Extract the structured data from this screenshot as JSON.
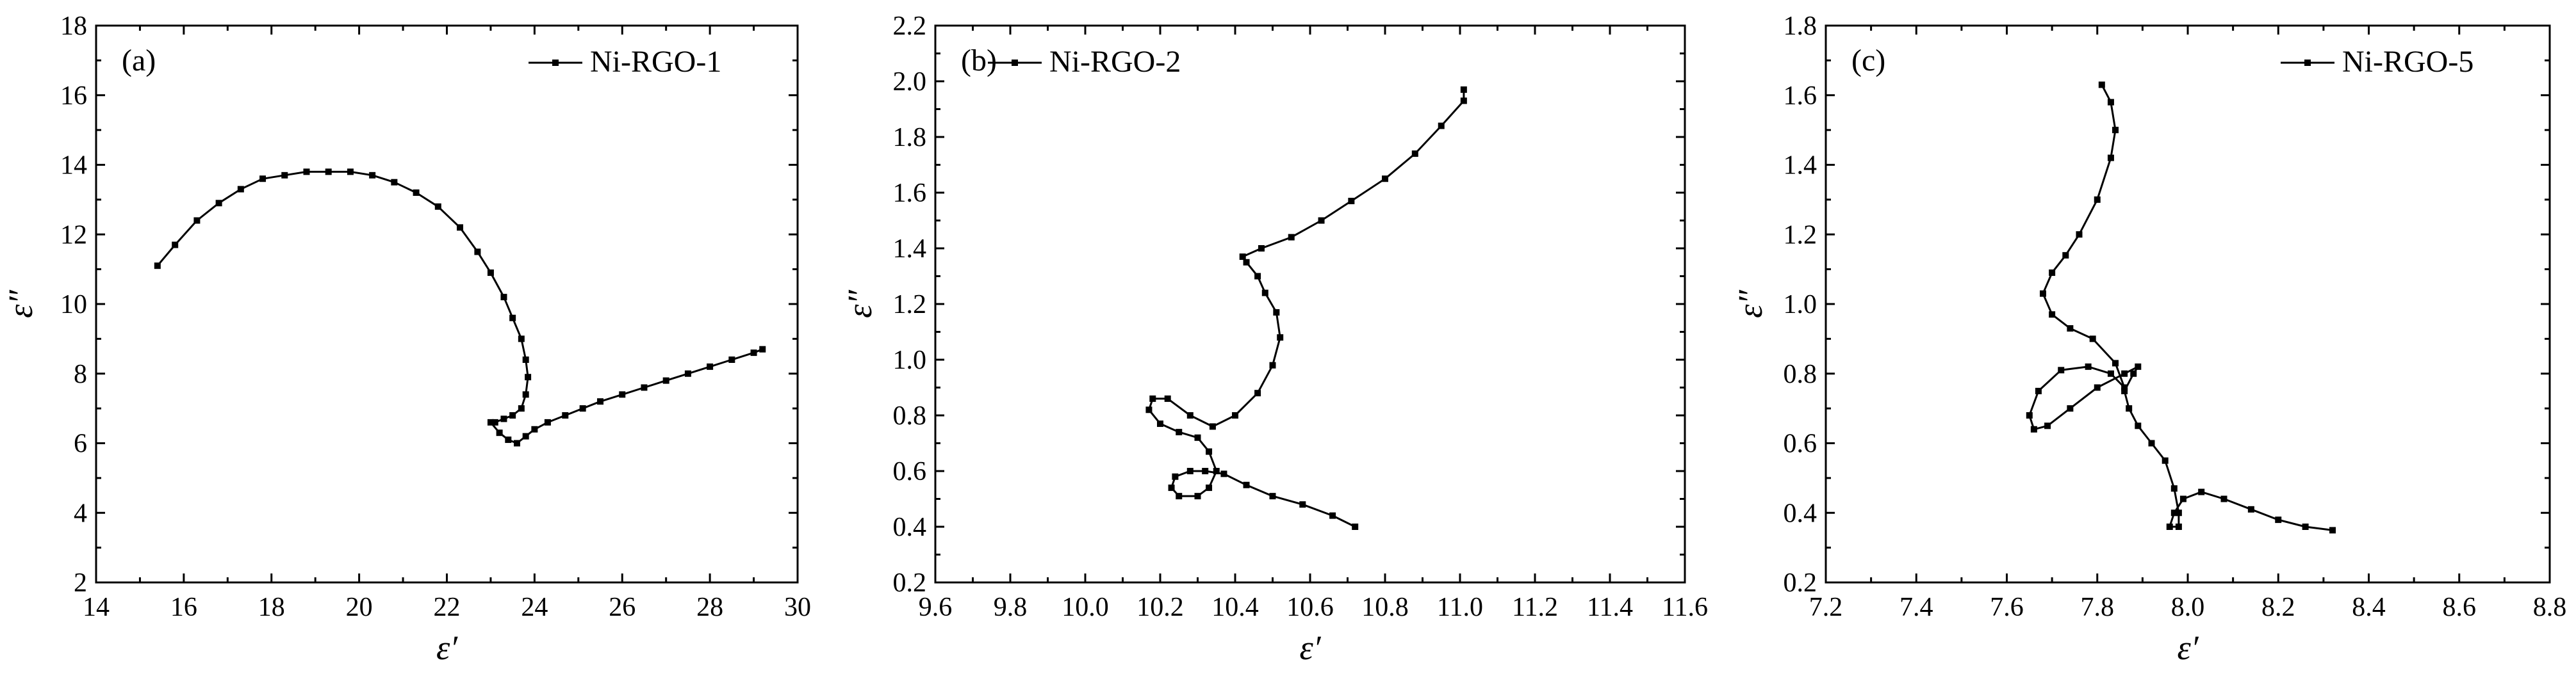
{
  "chart_data": [
    {
      "type": "line",
      "panel_label": "(a)",
      "xlabel": "ε′",
      "ylabel": "ε″",
      "xlim": [
        14,
        30
      ],
      "ylim": [
        2,
        18
      ],
      "xticks": [
        "14",
        "16",
        "18",
        "20",
        "22",
        "24",
        "26",
        "28",
        "30"
      ],
      "yticks": [
        "2",
        "4",
        "6",
        "8",
        "10",
        "12",
        "14",
        "16",
        "18"
      ],
      "legend_position": "top-right",
      "series": [
        {
          "name": "Ni-RGO-1",
          "x": [
            15.4,
            15.8,
            16.3,
            16.8,
            17.3,
            17.8,
            18.3,
            18.8,
            19.3,
            19.8,
            20.3,
            20.8,
            21.3,
            21.8,
            22.3,
            22.7,
            23.0,
            23.3,
            23.5,
            23.7,
            23.8,
            23.85,
            23.8,
            23.7,
            23.5,
            23.3,
            23.1,
            23.0,
            23.2,
            23.4,
            23.6,
            23.8,
            24.0,
            24.3,
            24.7,
            25.1,
            25.5,
            26.0,
            26.5,
            27.0,
            27.5,
            28.0,
            28.5,
            29.0,
            29.2
          ],
          "y": [
            11.1,
            11.7,
            12.4,
            12.9,
            13.3,
            13.6,
            13.7,
            13.8,
            13.8,
            13.8,
            13.7,
            13.5,
            13.2,
            12.8,
            12.2,
            11.5,
            10.9,
            10.2,
            9.6,
            9.0,
            8.4,
            7.9,
            7.4,
            7.0,
            6.8,
            6.7,
            6.6,
            6.6,
            6.3,
            6.1,
            6.0,
            6.2,
            6.4,
            6.6,
            6.8,
            7.0,
            7.2,
            7.4,
            7.6,
            7.8,
            8.0,
            8.2,
            8.4,
            8.6,
            8.7
          ]
        }
      ]
    },
    {
      "type": "line",
      "panel_label": "(b)",
      "xlabel": "ε′",
      "ylabel": "ε″",
      "xlim": [
        9.6,
        11.6
      ],
      "ylim": [
        0.2,
        2.2
      ],
      "xticks": [
        "9.6",
        "9.8",
        "10.0",
        "10.2",
        "10.4",
        "10.6",
        "10.8",
        "11.0",
        "11.2",
        "11.4",
        "11.6"
      ],
      "yticks": [
        "0.2",
        "0.4",
        "0.6",
        "0.8",
        "1.0",
        "1.2",
        "1.4",
        "1.6",
        "1.8",
        "2.0",
        "2.2"
      ],
      "legend_position": "top-left",
      "series": [
        {
          "name": "Ni-RGO-2",
          "x": [
            10.72,
            10.66,
            10.58,
            10.5,
            10.43,
            10.37,
            10.32,
            10.28,
            10.24,
            10.23,
            10.25,
            10.3,
            10.33,
            10.35,
            10.33,
            10.3,
            10.25,
            10.2,
            10.17,
            10.18,
            10.22,
            10.28,
            10.34,
            10.4,
            10.46,
            10.5,
            10.52,
            10.51,
            10.48,
            10.46,
            10.43,
            10.42,
            10.47,
            10.55,
            10.63,
            10.71,
            10.8,
            10.88,
            10.95,
            11.01,
            11.01
          ],
          "y": [
            0.4,
            0.44,
            0.48,
            0.51,
            0.55,
            0.59,
            0.6,
            0.6,
            0.58,
            0.54,
            0.51,
            0.51,
            0.54,
            0.6,
            0.67,
            0.72,
            0.74,
            0.77,
            0.82,
            0.86,
            0.86,
            0.8,
            0.76,
            0.8,
            0.88,
            0.98,
            1.08,
            1.17,
            1.24,
            1.3,
            1.35,
            1.37,
            1.4,
            1.44,
            1.5,
            1.57,
            1.65,
            1.74,
            1.84,
            1.93,
            1.97
          ]
        }
      ]
    },
    {
      "type": "line",
      "panel_label": "(c)",
      "xlabel": "ε′",
      "ylabel": "ε″",
      "xlim": [
        7.2,
        8.8
      ],
      "ylim": [
        0.2,
        1.8
      ],
      "xticks": [
        "7.2",
        "7.4",
        "7.6",
        "7.8",
        "8.0",
        "8.2",
        "8.4",
        "8.6",
        "8.8"
      ],
      "yticks": [
        "0.2",
        "0.4",
        "0.6",
        "0.8",
        "1.0",
        "1.2",
        "1.4",
        "1.6",
        "1.8"
      ],
      "legend_position": "top-right",
      "series": [
        {
          "name": "Ni-RGO-5",
          "x": [
            8.32,
            8.26,
            8.2,
            8.14,
            8.08,
            8.03,
            7.99,
            7.97,
            7.96,
            7.98,
            7.98,
            7.97,
            7.95,
            7.92,
            7.89,
            7.87,
            7.86,
            7.88,
            7.89,
            7.86,
            7.8,
            7.74,
            7.69,
            7.66,
            7.65,
            7.67,
            7.72,
            7.78,
            7.83,
            7.86,
            7.84,
            7.79,
            7.74,
            7.7,
            7.68,
            7.7,
            7.73,
            7.76,
            7.8,
            7.83,
            7.84,
            7.83,
            7.81
          ],
          "y": [
            0.35,
            0.36,
            0.38,
            0.41,
            0.44,
            0.46,
            0.44,
            0.4,
            0.36,
            0.36,
            0.4,
            0.47,
            0.55,
            0.6,
            0.65,
            0.7,
            0.75,
            0.8,
            0.82,
            0.8,
            0.76,
            0.7,
            0.65,
            0.64,
            0.68,
            0.75,
            0.81,
            0.82,
            0.8,
            0.76,
            0.83,
            0.9,
            0.93,
            0.97,
            1.03,
            1.09,
            1.14,
            1.2,
            1.3,
            1.42,
            1.5,
            1.58,
            1.63
          ]
        }
      ]
    }
  ]
}
